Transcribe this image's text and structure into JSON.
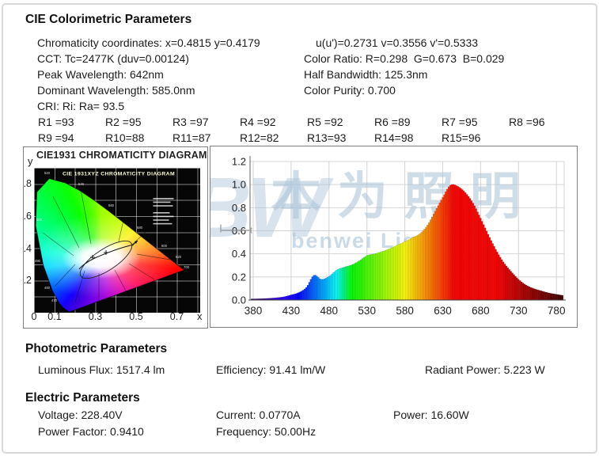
{
  "colorimetric": {
    "title": "CIE Colorimetric Parameters",
    "chromaticity": "Chromaticity coordinates: x=0.4815 y=0.4179",
    "uv": "u(u')=0.2731 v=0.3556 v'=0.5333",
    "cct": "CCT: Tc=2477K (duv=0.00124)",
    "color_ratio": "Color Ratio: R=0.298  G=0.673  B=0.029",
    "peak_wavelength": "Peak Wavelength: 642nm",
    "half_bandwidth": "Half Bandwidth: 125.3nm",
    "dominant_wavelength": "Dominant Wavelength: 585.0nm",
    "color_purity": "Color Purity: 0.700",
    "cri": "CRI: Ri: Ra= 93.5",
    "cri_values": [
      "R1 =93",
      "R2 =95",
      "R3 =97",
      "R4 =92",
      "R5 =92",
      "R6 =89",
      "R7 =95",
      "R8 =96",
      "R9 =94",
      "R10=88",
      "R11=87",
      "R12=82",
      "R13=93",
      "R14=98",
      "R15=96"
    ]
  },
  "cie_diagram": {
    "title": "CIE1931 CHROMATICITY DIAGRAM",
    "inner_title": "CIE 1931XYZ CHROMATICITY DIAGRAM",
    "x_axis_label": "x",
    "y_axis_label": "y",
    "x_ticks": [
      "0",
      "0.1",
      "0.3",
      "0.5",
      "0.7"
    ],
    "y_ticks": [
      ".8",
      ".6",
      ".4",
      ".2"
    ],
    "locus_labels": [
      "470",
      "480",
      "490",
      "500",
      "520",
      "540",
      "560",
      "580",
      "600",
      "620",
      "700"
    ]
  },
  "chart_data": {
    "type": "bar",
    "description": "relative spectral power distribution, bars colored by wavelength",
    "xlabel": "",
    "ylabel": "",
    "x_nm": [
      380,
      390,
      400,
      410,
      420,
      430,
      440,
      450,
      460,
      470,
      480,
      490,
      500,
      510,
      520,
      530,
      540,
      550,
      560,
      570,
      580,
      590,
      600,
      610,
      620,
      630,
      640,
      650,
      660,
      670,
      680,
      690,
      700,
      710,
      720,
      730,
      740,
      750,
      760,
      770,
      780,
      790
    ],
    "values": [
      0.01,
      0.012,
      0.015,
      0.02,
      0.028,
      0.045,
      0.065,
      0.11,
      0.215,
      0.18,
      0.205,
      0.26,
      0.285,
      0.305,
      0.34,
      0.385,
      0.4,
      0.42,
      0.445,
      0.475,
      0.505,
      0.54,
      0.575,
      0.65,
      0.77,
      0.89,
      0.995,
      0.985,
      0.93,
      0.84,
      0.71,
      0.57,
      0.44,
      0.33,
      0.25,
      0.18,
      0.13,
      0.1,
      0.08,
      0.062,
      0.05,
      0.04
    ],
    "x_ticks": [
      "380",
      "430",
      "480",
      "530",
      "580",
      "630",
      "680",
      "730",
      "780"
    ],
    "y_ticks": [
      "0.0",
      "0.2",
      "0.4",
      "0.6",
      "0.8",
      "1.0",
      "1.2"
    ],
    "xlim": [
      376,
      790
    ],
    "ylim": [
      0,
      1.2
    ],
    "grid": true,
    "peak_value_at_nm": 642
  },
  "watermark": {
    "logo": "BW",
    "cjk": "本为照明",
    "latin": "benwei Lig"
  },
  "photometric": {
    "title": "Photometric Parameters",
    "luminous_flux": "Luminous Flux: 1517.4 lm",
    "efficiency": "Efficiency: 91.41 lm/W",
    "radiant_power": "Radiant Power: 5.223 W"
  },
  "electric": {
    "title": "Electric Parameters",
    "voltage": "Voltage: 228.40V",
    "current": "Current: 0.0770A",
    "power": "Power: 16.60W",
    "power_factor": "Power Factor: 0.9410",
    "frequency": "Frequency: 50.00Hz"
  },
  "colors": {
    "text": "#1c1c1c",
    "box_border": "#7f7f7f",
    "watermark": "#a9c3d8",
    "page_border": "#d9d9d9"
  }
}
